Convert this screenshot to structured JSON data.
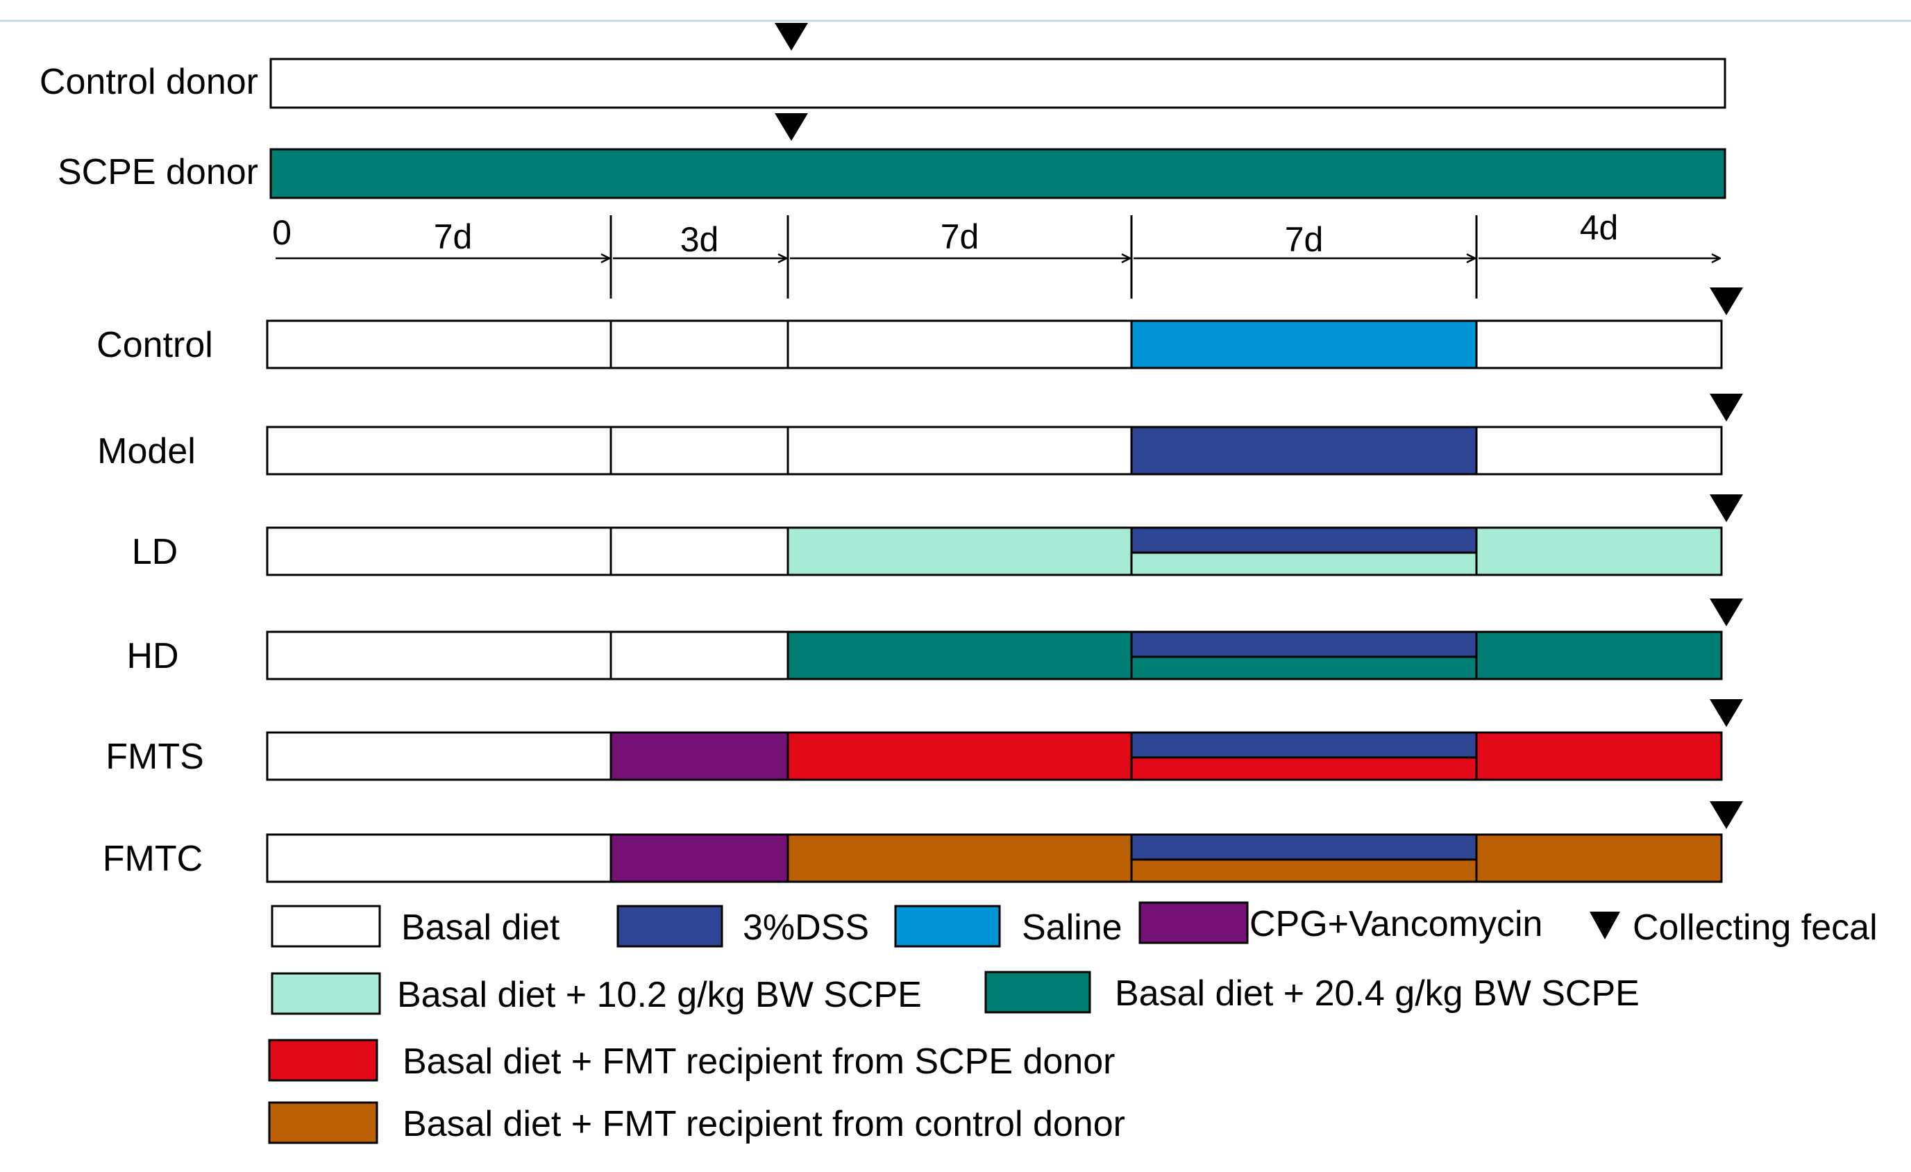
{
  "colors": {
    "basal": "#ffffff",
    "dss": "#2e4593",
    "saline": "#0095d6",
    "cpg_vanco": "#741177",
    "ld": "#a7ead5",
    "hd": "#007e73",
    "fmts": "#e20a18",
    "fmtc": "#bb6003",
    "outline": "#000000",
    "top_rule": "#c5d9e3"
  },
  "donors": [
    {
      "label": "Control donor",
      "fill": "basal"
    },
    {
      "label": "SCPE donor",
      "fill": "hd"
    }
  ],
  "timeline": {
    "origin_label": "0",
    "segments": [
      {
        "label": "7d",
        "days": 7
      },
      {
        "label": "3d",
        "days": 3
      },
      {
        "label": "7d",
        "days": 7
      },
      {
        "label": "7d",
        "days": 7
      },
      {
        "label": "4d",
        "days": 4
      }
    ]
  },
  "groups": [
    {
      "label": "Control",
      "segments": [
        {
          "fill": "basal"
        },
        {
          "fill": "basal"
        },
        {
          "fill": "basal"
        },
        {
          "fill": "saline"
        },
        {
          "fill": "basal"
        }
      ]
    },
    {
      "label": "Model",
      "segments": [
        {
          "fill": "basal"
        },
        {
          "fill": "basal"
        },
        {
          "fill": "basal"
        },
        {
          "fill": "dss"
        },
        {
          "fill": "basal"
        }
      ]
    },
    {
      "label": "LD",
      "segments": [
        {
          "fill": "basal"
        },
        {
          "fill": "basal"
        },
        {
          "fill": "ld"
        },
        {
          "fill": "dss",
          "lower": "ld"
        },
        {
          "fill": "ld"
        }
      ]
    },
    {
      "label": "HD",
      "segments": [
        {
          "fill": "basal"
        },
        {
          "fill": "basal"
        },
        {
          "fill": "hd"
        },
        {
          "fill": "dss",
          "lower": "hd"
        },
        {
          "fill": "hd"
        }
      ]
    },
    {
      "label": "FMTS",
      "segments": [
        {
          "fill": "basal"
        },
        {
          "fill": "cpg_vanco"
        },
        {
          "fill": "fmts"
        },
        {
          "fill": "dss",
          "lower": "fmts"
        },
        {
          "fill": "fmts"
        }
      ]
    },
    {
      "label": "FMTC",
      "segments": [
        {
          "fill": "basal"
        },
        {
          "fill": "cpg_vanco"
        },
        {
          "fill": "fmtc"
        },
        {
          "fill": "dss",
          "lower": "fmtc"
        },
        {
          "fill": "fmtc"
        }
      ]
    }
  ],
  "legend": [
    {
      "label": "Basal diet",
      "fill": "basal"
    },
    {
      "label": "3%DSS",
      "fill": "dss"
    },
    {
      "label": "Saline",
      "fill": "saline"
    },
    {
      "label": "CPG+Vancomycin",
      "fill": "cpg_vanco"
    },
    {
      "label": "Collecting fecal",
      "marker": "triangle"
    },
    {
      "label": "Basal diet + 10.2 g/kg BW SCPE",
      "fill": "ld"
    },
    {
      "label": "Basal diet + 20.4 g/kg BW SCPE",
      "fill": "hd"
    },
    {
      "label": "Basal diet + FMT recipient from SCPE donor",
      "fill": "fmts"
    },
    {
      "label": "Basal diet + FMT recipient from control donor",
      "fill": "fmtc"
    }
  ]
}
